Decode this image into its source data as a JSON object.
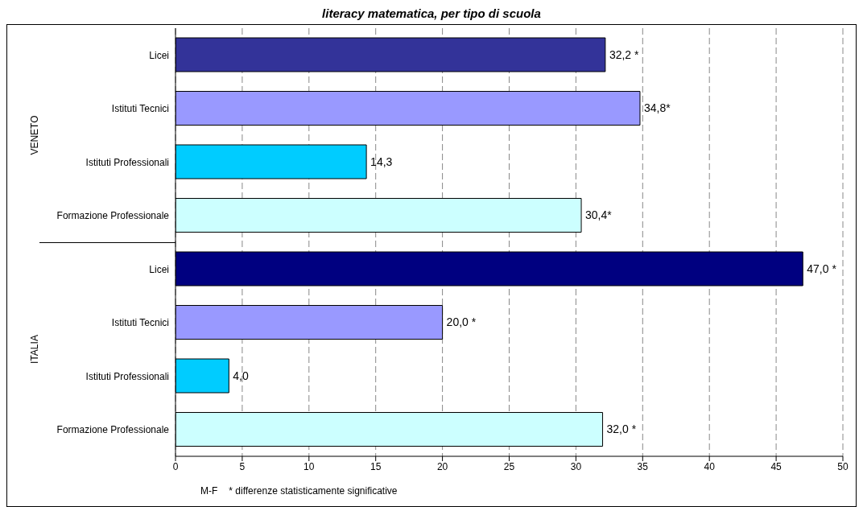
{
  "chart_data": {
    "type": "bar",
    "orientation": "horizontal",
    "title": "literacy matematica, per tipo di scuola",
    "categories": [
      "Licei",
      "Istituti Tecnici",
      "Istituti Professionali",
      "Formazione Professionale",
      "Licei",
      "Istituti Tecnici",
      "Istituti Professionali",
      "Formazione Professionale"
    ],
    "values": [
      32.2,
      34.8,
      14.3,
      30.4,
      47.0,
      20.0,
      4.0,
      32.0
    ],
    "value_labels": [
      "32,2 *",
      "34,8*",
      "14,3",
      "30,4*",
      "47,0 *",
      "20,0 *",
      "4,0",
      "32,0 *"
    ],
    "colors": [
      "#333399",
      "#9999ff",
      "#00ccff",
      "#ccffff",
      "#000080",
      "#9999ff",
      "#00ccff",
      "#ccffff"
    ],
    "xlim": [
      0,
      50
    ],
    "xticks": [
      0,
      5,
      10,
      15,
      20,
      25,
      30,
      35,
      40,
      45,
      50
    ],
    "grid": "x",
    "annotations": [
      "VENETO",
      "ITALIA",
      "M-F",
      "* differenze statisticamente significative"
    ]
  }
}
